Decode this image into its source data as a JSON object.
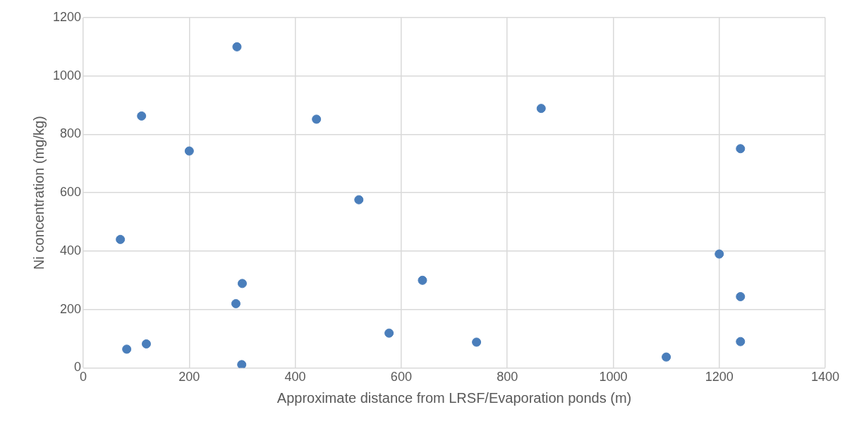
{
  "chart_data": {
    "type": "scatter",
    "xlabel": "Approximate distance from LRSF/Evaporation ponds (m)",
    "ylabel": "Ni concentration (mg/kg)",
    "x": [
      290,
      110,
      440,
      864,
      200,
      1240,
      520,
      70,
      1200,
      300,
      640,
      288,
      1240,
      577,
      82,
      119,
      742,
      1240,
      1100,
      299
    ],
    "values": [
      1100,
      863,
      852,
      889,
      743,
      751,
      576,
      440,
      390,
      289,
      300,
      220,
      244,
      119,
      64,
      82,
      88,
      90,
      37,
      11
    ],
    "color": "#4a7ebb",
    "xlim": [
      0,
      1400
    ],
    "xticks": [
      0,
      200,
      400,
      600,
      800,
      1000,
      1200,
      1400
    ],
    "ylim": [
      0,
      1200
    ],
    "yticks": [
      0,
      200,
      400,
      600,
      800,
      1000,
      1200
    ],
    "grid": true,
    "marker": "circle",
    "legend": false
  }
}
